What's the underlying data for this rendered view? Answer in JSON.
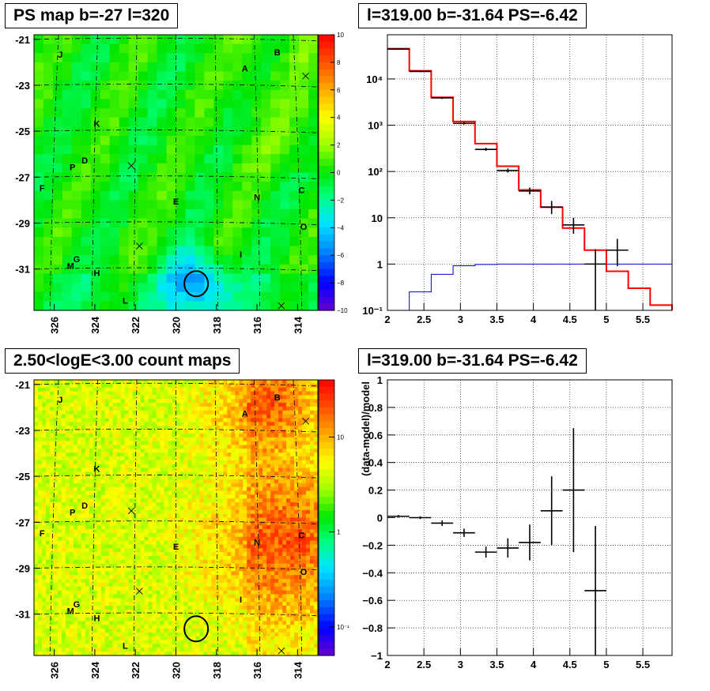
{
  "titles": {
    "ps_map": "PS map b=-27 l=320",
    "spectrum": "l=319.00 b=-31.64 PS=-6.42",
    "count_map": "2.50<logE<3.00 count maps",
    "residual": "l=319.00 b=-31.64 PS=-6.42"
  },
  "colors": {
    "model_line": "#ff0000",
    "background_line": "#0000cc",
    "data": "#000000",
    "grid": "#000000"
  },
  "chart_data": [
    {
      "id": "ps_map",
      "type": "heatmap",
      "title": "PS map b=-27 l=320",
      "x_ticks": [
        "326",
        "324",
        "322",
        "320",
        "318",
        "316",
        "314"
      ],
      "y_ticks": [
        "-21",
        "-23",
        "-25",
        "-27",
        "-29",
        "-31"
      ],
      "xlim": [
        327,
        313
      ],
      "ylim": [
        -32.8,
        -20.8
      ],
      "colorbar": {
        "ticks": [
          "10",
          "8",
          "6",
          "4",
          "2",
          "0",
          "−2",
          "−4",
          "−6",
          "−8",
          "−10"
        ],
        "range": [
          -10,
          10
        ],
        "scale": "linear"
      },
      "sources": [
        {
          "label": "J",
          "l": 325.7,
          "b": -21.8
        },
        {
          "label": "B",
          "l": 315.0,
          "b": -21.7
        },
        {
          "label": "A",
          "l": 316.6,
          "b": -22.4
        },
        {
          "label": "K",
          "l": 323.9,
          "b": -24.8
        },
        {
          "label": "D",
          "l": 324.5,
          "b": -26.4
        },
        {
          "label": "P",
          "l": 325.1,
          "b": -26.7
        },
        {
          "label": "F",
          "l": 326.6,
          "b": -27.6
        },
        {
          "label": "E",
          "l": 320.0,
          "b": -28.2
        },
        {
          "label": "N",
          "l": 316.0,
          "b": -28.0
        },
        {
          "label": "C",
          "l": 313.8,
          "b": -27.7
        },
        {
          "label": "O",
          "l": 313.7,
          "b": -29.3
        },
        {
          "label": "I",
          "l": 316.8,
          "b": -30.5
        },
        {
          "label": "G",
          "l": 324.9,
          "b": -30.7
        },
        {
          "label": "M",
          "l": 325.2,
          "b": -31.0
        },
        {
          "label": "H",
          "l": 323.9,
          "b": -31.3
        },
        {
          "label": "L",
          "l": 322.5,
          "b": -32.5
        }
      ]
    },
    {
      "id": "spectrum",
      "type": "line",
      "title": "l=319.00 b=-31.64 PS=-6.42",
      "x_ticks": [
        "2",
        "2.5",
        "3",
        "3.5",
        "4",
        "4.5",
        "5",
        "5.5"
      ],
      "y_ticks": [
        "10⁻¹",
        "1",
        "10",
        "10²",
        "10³",
        "10⁴"
      ],
      "xlim": [
        2,
        5.9
      ],
      "ylim": [
        0.1,
        90000
      ],
      "y_scale": "log",
      "grid": true,
      "model_steps": {
        "edges": [
          2.0,
          2.3,
          2.6,
          2.9,
          3.2,
          3.5,
          3.8,
          4.1,
          4.4,
          4.7,
          5.0,
          5.3,
          5.6,
          5.9
        ],
        "values": [
          45000,
          15000,
          4000,
          1200,
          400,
          130,
          40,
          17,
          6,
          2,
          0.7,
          0.3,
          0.13
        ]
      },
      "background_steps": {
        "edges": [
          2.0,
          2.3,
          2.6,
          2.9,
          3.2,
          3.5,
          5.9
        ],
        "values": [
          0.1,
          0.25,
          0.6,
          0.92,
          0.98,
          1.0
        ]
      },
      "data": [
        {
          "x": 2.15,
          "y": 44000,
          "xerr": 0.15,
          "ylo": 43000,
          "yhi": 45000
        },
        {
          "x": 2.45,
          "y": 14500,
          "xerr": 0.15,
          "ylo": 14000,
          "yhi": 15000
        },
        {
          "x": 2.75,
          "y": 3900,
          "xerr": 0.15,
          "ylo": 3700,
          "yhi": 4100
        },
        {
          "x": 3.05,
          "y": 1100,
          "xerr": 0.15,
          "ylo": 1030,
          "yhi": 1170
        },
        {
          "x": 3.35,
          "y": 300,
          "xerr": 0.15,
          "ylo": 280,
          "yhi": 325
        },
        {
          "x": 3.65,
          "y": 105,
          "xerr": 0.15,
          "ylo": 95,
          "yhi": 116
        },
        {
          "x": 3.95,
          "y": 38,
          "xerr": 0.15,
          "ylo": 32,
          "yhi": 45
        },
        {
          "x": 4.25,
          "y": 17,
          "xerr": 0.15,
          "ylo": 12,
          "yhi": 23
        },
        {
          "x": 4.55,
          "y": 7,
          "xerr": 0.15,
          "ylo": 4.5,
          "yhi": 10
        },
        {
          "x": 4.85,
          "y": 1.0,
          "xerr": 0.15,
          "ylo": 0.1,
          "yhi": 2.1
        },
        {
          "x": 5.15,
          "y": 2.0,
          "xerr": 0.15,
          "ylo": 0.9,
          "yhi": 3.5
        }
      ]
    },
    {
      "id": "count_map",
      "type": "heatmap",
      "title": "2.50<logE<3.00 count maps",
      "x_ticks": [
        "326",
        "324",
        "322",
        "320",
        "318",
        "316",
        "314"
      ],
      "y_ticks": [
        "-21",
        "-23",
        "-25",
        "-27",
        "-29",
        "-31"
      ],
      "xlim": [
        327,
        313
      ],
      "ylim": [
        -32.8,
        -20.8
      ],
      "colorbar": {
        "ticks": [
          "10",
          "1",
          "10⁻¹"
        ],
        "scale": "log",
        "range": [
          0.05,
          40
        ]
      },
      "sources": [
        {
          "label": "J",
          "l": 325.7,
          "b": -21.8
        },
        {
          "label": "B",
          "l": 315.0,
          "b": -21.7
        },
        {
          "label": "A",
          "l": 316.6,
          "b": -22.4
        },
        {
          "label": "K",
          "l": 323.9,
          "b": -24.8
        },
        {
          "label": "D",
          "l": 324.5,
          "b": -26.4
        },
        {
          "label": "P",
          "l": 325.1,
          "b": -26.7
        },
        {
          "label": "F",
          "l": 326.6,
          "b": -27.6
        },
        {
          "label": "E",
          "l": 320.0,
          "b": -28.2
        },
        {
          "label": "N",
          "l": 316.0,
          "b": -28.0
        },
        {
          "label": "C",
          "l": 313.8,
          "b": -27.7
        },
        {
          "label": "O",
          "l": 313.7,
          "b": -29.3
        },
        {
          "label": "I",
          "l": 316.8,
          "b": -30.5
        },
        {
          "label": "G",
          "l": 324.9,
          "b": -30.7
        },
        {
          "label": "M",
          "l": 325.2,
          "b": -31.0
        },
        {
          "label": "H",
          "l": 323.9,
          "b": -31.3
        },
        {
          "label": "L",
          "l": 322.5,
          "b": -32.5
        }
      ]
    },
    {
      "id": "residual",
      "type": "scatter",
      "title": "l=319.00 b=-31.64 PS=-6.42",
      "ylabel": "(data-model)/model",
      "x_ticks": [
        "2",
        "2.5",
        "3",
        "3.5",
        "4",
        "4.5",
        "5",
        "5.5"
      ],
      "y_ticks": [
        "1",
        "0.8",
        "0.6",
        "0.4",
        "0.2",
        "0",
        "−0.2",
        "−0.4",
        "−0.6",
        "−0.8",
        "−1"
      ],
      "xlim": [
        2,
        5.9
      ],
      "ylim": [
        -1,
        1
      ],
      "grid": true,
      "data": [
        {
          "x": 2.15,
          "y": 0.01,
          "xerr": 0.15,
          "yerr": 0.01
        },
        {
          "x": 2.45,
          "y": 0.0,
          "xerr": 0.15,
          "yerr": 0.01
        },
        {
          "x": 2.75,
          "y": -0.04,
          "xerr": 0.15,
          "yerr": 0.02
        },
        {
          "x": 3.05,
          "y": -0.11,
          "xerr": 0.15,
          "yerr": 0.03
        },
        {
          "x": 3.35,
          "y": -0.25,
          "xerr": 0.15,
          "yerr": 0.04
        },
        {
          "x": 3.65,
          "y": -0.22,
          "xerr": 0.15,
          "yerr": 0.07
        },
        {
          "x": 3.95,
          "y": -0.18,
          "xerr": 0.15,
          "yerr": 0.13
        },
        {
          "x": 4.25,
          "y": 0.05,
          "xerr": 0.15,
          "yerr": 0.25
        },
        {
          "x": 4.55,
          "y": 0.2,
          "xerr": 0.15,
          "yerr": 0.45
        },
        {
          "x": 4.85,
          "y": -0.53,
          "xerr": 0.15,
          "yerr": 0.47
        }
      ]
    }
  ]
}
